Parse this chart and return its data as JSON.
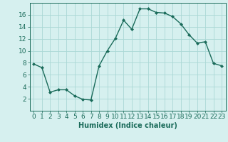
{
  "x": [
    0,
    1,
    2,
    3,
    4,
    5,
    6,
    7,
    8,
    9,
    10,
    11,
    12,
    13,
    14,
    15,
    16,
    17,
    18,
    19,
    20,
    21,
    22,
    23
  ],
  "y": [
    7.8,
    7.2,
    3.1,
    3.5,
    3.5,
    2.5,
    1.9,
    1.8,
    7.5,
    10.0,
    12.1,
    15.1,
    13.6,
    17.0,
    17.0,
    16.4,
    16.3,
    15.7,
    14.5,
    12.7,
    11.3,
    11.5,
    7.9,
    7.5
  ],
  "line_color": "#1a6b5a",
  "marker": "D",
  "marker_size": 2.0,
  "bg_color": "#d6f0ef",
  "grid_color": "#aad8d5",
  "xlabel": "Humidex (Indice chaleur)",
  "xlim": [
    -0.5,
    23.5
  ],
  "ylim": [
    0,
    18
  ],
  "yticks": [
    2,
    4,
    6,
    8,
    10,
    12,
    14,
    16
  ],
  "xticks": [
    0,
    1,
    2,
    3,
    4,
    5,
    6,
    7,
    8,
    9,
    10,
    11,
    12,
    13,
    14,
    15,
    16,
    17,
    18,
    19,
    20,
    21,
    22,
    23
  ],
  "xlabel_fontsize": 7,
  "tick_fontsize": 6.5,
  "linewidth": 1.0
}
